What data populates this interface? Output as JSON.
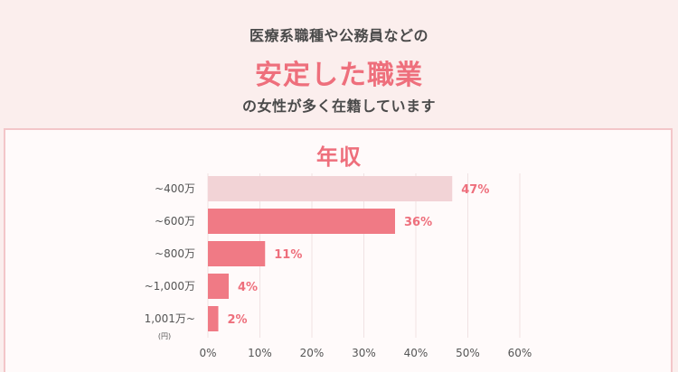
{
  "header": {
    "line1": "医療系職種や公務員などの",
    "headline": "安定した職業",
    "line3": "の女性が多く在籍しています"
  },
  "chart_data": {
    "type": "bar",
    "orientation": "horizontal",
    "title": "年収",
    "categories": [
      "~400万",
      "~600万",
      "~800万",
      "~1,000万",
      "1,001万~"
    ],
    "values": [
      47,
      36,
      11,
      4,
      2
    ],
    "value_labels": [
      "47%",
      "36%",
      "11%",
      "4%",
      "2%"
    ],
    "unit_label": "(円)",
    "xlim": [
      0,
      60
    ],
    "x_ticks": [
      0,
      10,
      20,
      30,
      40,
      50,
      60
    ],
    "x_tick_labels": [
      "0%",
      "10%",
      "20%",
      "30%",
      "40%",
      "50%",
      "60%"
    ],
    "grid": true,
    "colors": {
      "highlight_bar": "#f2d3d6",
      "bar": "#f07a85",
      "value_text": "#ee6f7c",
      "grid": "#f0e2e3"
    }
  }
}
